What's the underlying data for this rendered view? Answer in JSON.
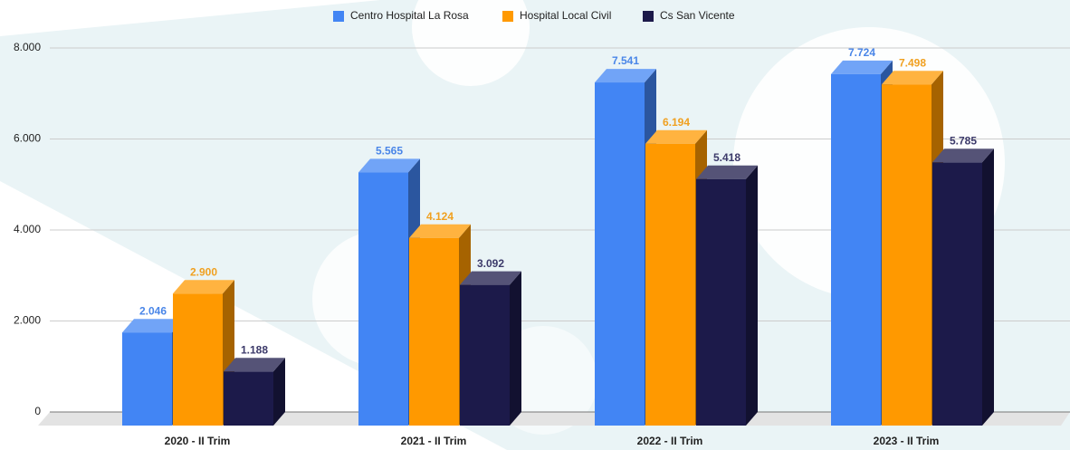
{
  "chart_data": {
    "type": "bar3d",
    "categories": [
      "2020 - II Trim",
      "2021 - II Trim",
      "2022 - II Trim",
      "2023 - II Trim"
    ],
    "series": [
      {
        "name": "Centro Hospital La Rosa",
        "color": "#4285f4",
        "label_color": "#4a86e8",
        "values": [
          2046,
          5565,
          7541,
          7724
        ],
        "value_labels": [
          "2.046",
          "5.565",
          "7.541",
          "7.724"
        ]
      },
      {
        "name": "Hospital Local Civil",
        "color": "#ff9900",
        "label_color": "#f0a020",
        "values": [
          2900,
          4124,
          6194,
          7498
        ],
        "value_labels": [
          "2.900",
          "4.124",
          "6.194",
          "7.498"
        ]
      },
      {
        "name": "Cs San Vicente",
        "color": "#1c1a4a",
        "label_color": "#3c3a6a",
        "values": [
          1188,
          3092,
          5418,
          5785
        ],
        "value_labels": [
          "1.188",
          "3.092",
          "5.418",
          "5.785"
        ]
      }
    ],
    "ylim": [
      0,
      8000
    ],
    "yticks": [
      0,
      {
        "value": 2000,
        "label": "2.000"
      },
      {
        "value": 4000,
        "label": "4.000"
      },
      {
        "value": 6000,
        "label": "6.000"
      },
      {
        "value": 8000,
        "label": "8.000"
      }
    ],
    "grid": true,
    "legend": "top"
  }
}
